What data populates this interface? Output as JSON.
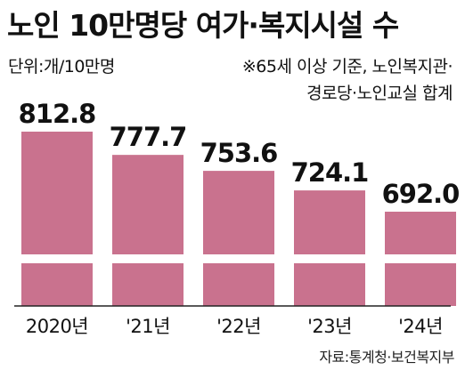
{
  "header": {
    "title": "노인 10만명당 여가·복지시설 수",
    "unit": "단위:개/10만명",
    "note_line1": "※65세 이상 기준, 노인복지관·",
    "note_line2": "경로당·노인교실 합계"
  },
  "footer": {
    "source": "자료:통계청·보건복지부"
  },
  "colors": {
    "bar": "#c9728e",
    "axis": "#222222"
  },
  "chart_data": {
    "type": "bar",
    "categories": [
      "2020년",
      "'21년",
      "'22년",
      "'23년",
      "'24년"
    ],
    "values": [
      812.8,
      777.7,
      753.6,
      724.1,
      692.0
    ],
    "value_labels": [
      "812.8",
      "777.7",
      "753.6",
      "724.1",
      "692.0"
    ],
    "title": "노인 10만명당 여가·복지시설 수",
    "xlabel": "",
    "ylabel": "",
    "axis_break": true,
    "grid": false,
    "legend": "none"
  }
}
